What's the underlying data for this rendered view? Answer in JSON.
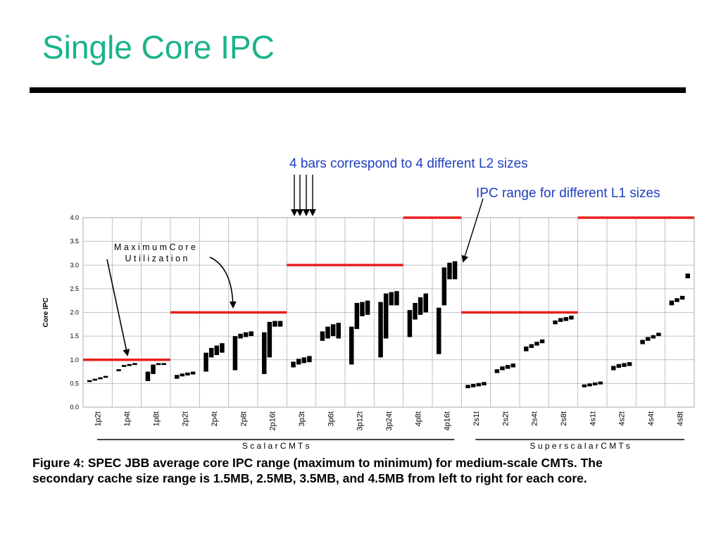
{
  "slide": {
    "title": "Single Core IPC",
    "annotation_l2": "4 bars correspond to 4 different L2 sizes",
    "annotation_l1": "IPC range for different L1 sizes",
    "caption_line1": "Figure 4: SPEC JBB average core IPC range (maximum to minimum) for medium-scale CMTs.  The",
    "caption_line2": "secondary cache size range is 1.5MB, 2.5MB, 3.5MB, and 4.5MB from left to right for each core."
  },
  "colors": {
    "title": "#1ab38a",
    "annotation": "#1f3fbf",
    "max_line": "#e8201f",
    "bar": "#000000"
  },
  "chart_data": {
    "type": "bar",
    "subtype": "range (max to min)",
    "ylabel": "Core IPC",
    "ylim": [
      0,
      4
    ],
    "yticks": [
      "0.0",
      "0.5",
      "1.0",
      "1.5",
      "2.0",
      "2.5",
      "3.0",
      "3.5",
      "4.0"
    ],
    "grid": true,
    "categories": [
      "1p2t",
      "1p4t",
      "1p8t",
      "2p2t",
      "2p4t",
      "2p8t",
      "2p16t",
      "3p3t",
      "3p6t",
      "3p12t",
      "3p24t",
      "4p8t",
      "4p16t",
      "2s1t",
      "2s2t",
      "2s4t",
      "2s8t",
      "4s1t",
      "4s2t",
      "4s4t",
      "4s8t"
    ],
    "bars_per_category": 4,
    "ranges": [
      [
        [
          0.57,
          0.53
        ],
        [
          0.6,
          0.56
        ],
        [
          0.63,
          0.59
        ],
        [
          0.66,
          0.62
        ]
      ],
      [
        [
          0.8,
          0.76
        ],
        [
          0.89,
          0.85
        ],
        [
          0.91,
          0.87
        ],
        [
          0.93,
          0.89
        ]
      ],
      [
        [
          0.75,
          0.55
        ],
        [
          0.9,
          0.7
        ],
        [
          0.93,
          0.89
        ],
        [
          0.93,
          0.89
        ]
      ],
      [
        [
          0.68,
          0.6
        ],
        [
          0.71,
          0.65
        ],
        [
          0.73,
          0.67
        ],
        [
          0.75,
          0.69
        ]
      ],
      [
        [
          1.15,
          0.75
        ],
        [
          1.25,
          1.05
        ],
        [
          1.3,
          1.1
        ],
        [
          1.35,
          1.15
        ]
      ],
      [
        [
          1.5,
          0.78
        ],
        [
          1.55,
          1.45
        ],
        [
          1.58,
          1.48
        ],
        [
          1.6,
          1.5
        ]
      ],
      [
        [
          1.58,
          0.7
        ],
        [
          1.8,
          1.05
        ],
        [
          1.82,
          1.7
        ],
        [
          1.82,
          1.7
        ]
      ],
      [
        [
          0.96,
          0.84
        ],
        [
          1.02,
          0.9
        ],
        [
          1.05,
          0.93
        ],
        [
          1.08,
          0.95
        ]
      ],
      [
        [
          1.6,
          1.4
        ],
        [
          1.7,
          1.45
        ],
        [
          1.75,
          1.5
        ],
        [
          1.78,
          1.45
        ]
      ],
      [
        [
          1.7,
          0.9
        ],
        [
          2.2,
          1.65
        ],
        [
          2.22,
          1.92
        ],
        [
          2.25,
          1.95
        ]
      ],
      [
        [
          2.22,
          1.05
        ],
        [
          2.4,
          1.45
        ],
        [
          2.43,
          2.15
        ],
        [
          2.45,
          2.15
        ]
      ],
      [
        [
          2.05,
          1.48
        ],
        [
          2.2,
          1.85
        ],
        [
          2.32,
          1.95
        ],
        [
          2.4,
          2.0
        ]
      ],
      [
        [
          2.1,
          1.12
        ],
        [
          2.95,
          2.15
        ],
        [
          3.05,
          2.7
        ],
        [
          3.08,
          2.7
        ]
      ],
      [
        [
          0.47,
          0.4
        ],
        [
          0.49,
          0.42
        ],
        [
          0.51,
          0.44
        ],
        [
          0.53,
          0.46
        ]
      ],
      [
        [
          0.8,
          0.72
        ],
        [
          0.86,
          0.78
        ],
        [
          0.89,
          0.81
        ],
        [
          0.92,
          0.84
        ]
      ],
      [
        [
          1.28,
          1.18
        ],
        [
          1.33,
          1.25
        ],
        [
          1.38,
          1.3
        ],
        [
          1.43,
          1.35
        ]
      ],
      [
        [
          1.83,
          1.75
        ],
        [
          1.88,
          1.8
        ],
        [
          1.9,
          1.82
        ],
        [
          1.93,
          1.85
        ]
      ],
      [
        [
          0.48,
          0.42
        ],
        [
          0.5,
          0.44
        ],
        [
          0.52,
          0.46
        ],
        [
          0.54,
          0.48
        ]
      ],
      [
        [
          0.87,
          0.78
        ],
        [
          0.91,
          0.83
        ],
        [
          0.93,
          0.85
        ],
        [
          0.95,
          0.87
        ]
      ],
      [
        [
          1.42,
          1.33
        ],
        [
          1.48,
          1.4
        ],
        [
          1.52,
          1.45
        ],
        [
          1.57,
          1.5
        ]
      ],
      [
        [
          2.25,
          2.15
        ],
        [
          2.3,
          2.22
        ],
        [
          2.35,
          2.27
        ],
        [
          2.82,
          2.72
        ]
      ]
    ],
    "max_utilization_lines": [
      {
        "from_category": "1p2t",
        "to_category": "1p8t",
        "value": 1.0
      },
      {
        "from_category": "2p2t",
        "to_category": "2p16t",
        "value": 2.0
      },
      {
        "from_category": "3p3t",
        "to_category": "3p24t",
        "value": 3.0
      },
      {
        "from_category": "4p8t",
        "to_category": "4p16t",
        "value": 4.0
      },
      {
        "from_category": "2s1t",
        "to_category": "2s8t",
        "value": 2.0
      },
      {
        "from_category": "4s1t",
        "to_category": "4s8t",
        "value": 4.0
      }
    ],
    "annotations": [
      {
        "text_line1": "M a x i m u m   C o r e",
        "text_line2": "U t i l i z a t i o n"
      }
    ],
    "groups": [
      {
        "label": "S c a l a r   C M T s",
        "from_category": "1p2t",
        "to_category": "4p16t"
      },
      {
        "label": "S u p e r s c a l a r   C M T s",
        "from_category": "2s1t",
        "to_category": "4s8t"
      }
    ]
  }
}
